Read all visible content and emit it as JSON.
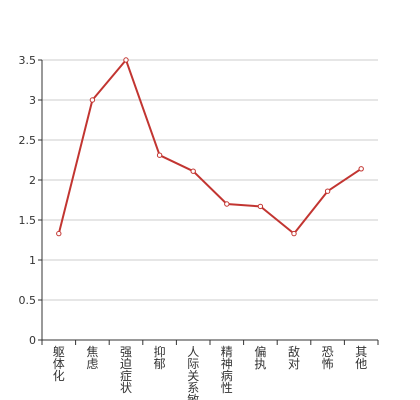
{
  "chart_data": {
    "type": "line",
    "categories": [
      "躯体化",
      "焦虑",
      "强迫症状",
      "抑郁",
      "人际关系敏感",
      "精神病性",
      "偏执",
      "敌对",
      "恐怖",
      "其他"
    ],
    "values": [
      1.33,
      3.0,
      3.5,
      2.31,
      2.11,
      1.7,
      1.67,
      1.33,
      1.86,
      2.14
    ],
    "ylim": [
      0,
      3.5
    ],
    "yticks": [
      "0",
      "0.5",
      "1",
      "1.5",
      "2",
      "2.5",
      "3",
      "3.5"
    ],
    "grid": true,
    "colors": {
      "line": "#c23531",
      "grid": "#cccccc",
      "axis": "#333333"
    }
  }
}
